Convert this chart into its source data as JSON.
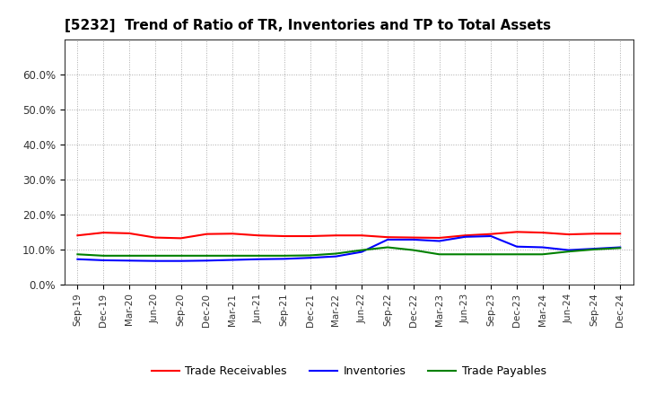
{
  "title": "[5232]  Trend of Ratio of TR, Inventories and TP to Total Assets",
  "x_labels": [
    "Sep-19",
    "Dec-19",
    "Mar-20",
    "Jun-20",
    "Sep-20",
    "Dec-20",
    "Mar-21",
    "Jun-21",
    "Sep-21",
    "Dec-21",
    "Mar-22",
    "Jun-22",
    "Sep-22",
    "Dec-22",
    "Mar-23",
    "Jun-23",
    "Sep-23",
    "Dec-23",
    "Mar-24",
    "Jun-24",
    "Sep-24",
    "Dec-24"
  ],
  "trade_receivables": [
    0.14,
    0.148,
    0.146,
    0.134,
    0.132,
    0.144,
    0.145,
    0.14,
    0.138,
    0.138,
    0.14,
    0.14,
    0.135,
    0.134,
    0.133,
    0.14,
    0.144,
    0.15,
    0.148,
    0.143,
    0.145,
    0.145
  ],
  "inventories": [
    0.072,
    0.069,
    0.068,
    0.067,
    0.067,
    0.068,
    0.07,
    0.072,
    0.073,
    0.076,
    0.08,
    0.093,
    0.128,
    0.128,
    0.124,
    0.136,
    0.138,
    0.108,
    0.106,
    0.098,
    0.102,
    0.106
  ],
  "trade_payables": [
    0.086,
    0.082,
    0.082,
    0.082,
    0.082,
    0.082,
    0.082,
    0.082,
    0.082,
    0.083,
    0.088,
    0.098,
    0.106,
    0.098,
    0.086,
    0.086,
    0.086,
    0.086,
    0.086,
    0.094,
    0.1,
    0.104
  ],
  "tr_color": "#ff0000",
  "inv_color": "#0000ff",
  "tp_color": "#008000",
  "ylim": [
    0.0,
    0.7
  ],
  "yticks": [
    0.0,
    0.1,
    0.2,
    0.3,
    0.4,
    0.5,
    0.6
  ],
  "ytick_labels": [
    "0.0%",
    "10.0%",
    "20.0%",
    "30.0%",
    "40.0%",
    "50.0%",
    "60.0%"
  ],
  "bg_color": "#ffffff",
  "grid_color": "#aaaaaa",
  "line_width": 1.5,
  "legend_labels": [
    "Trade Receivables",
    "Inventories",
    "Trade Payables"
  ]
}
